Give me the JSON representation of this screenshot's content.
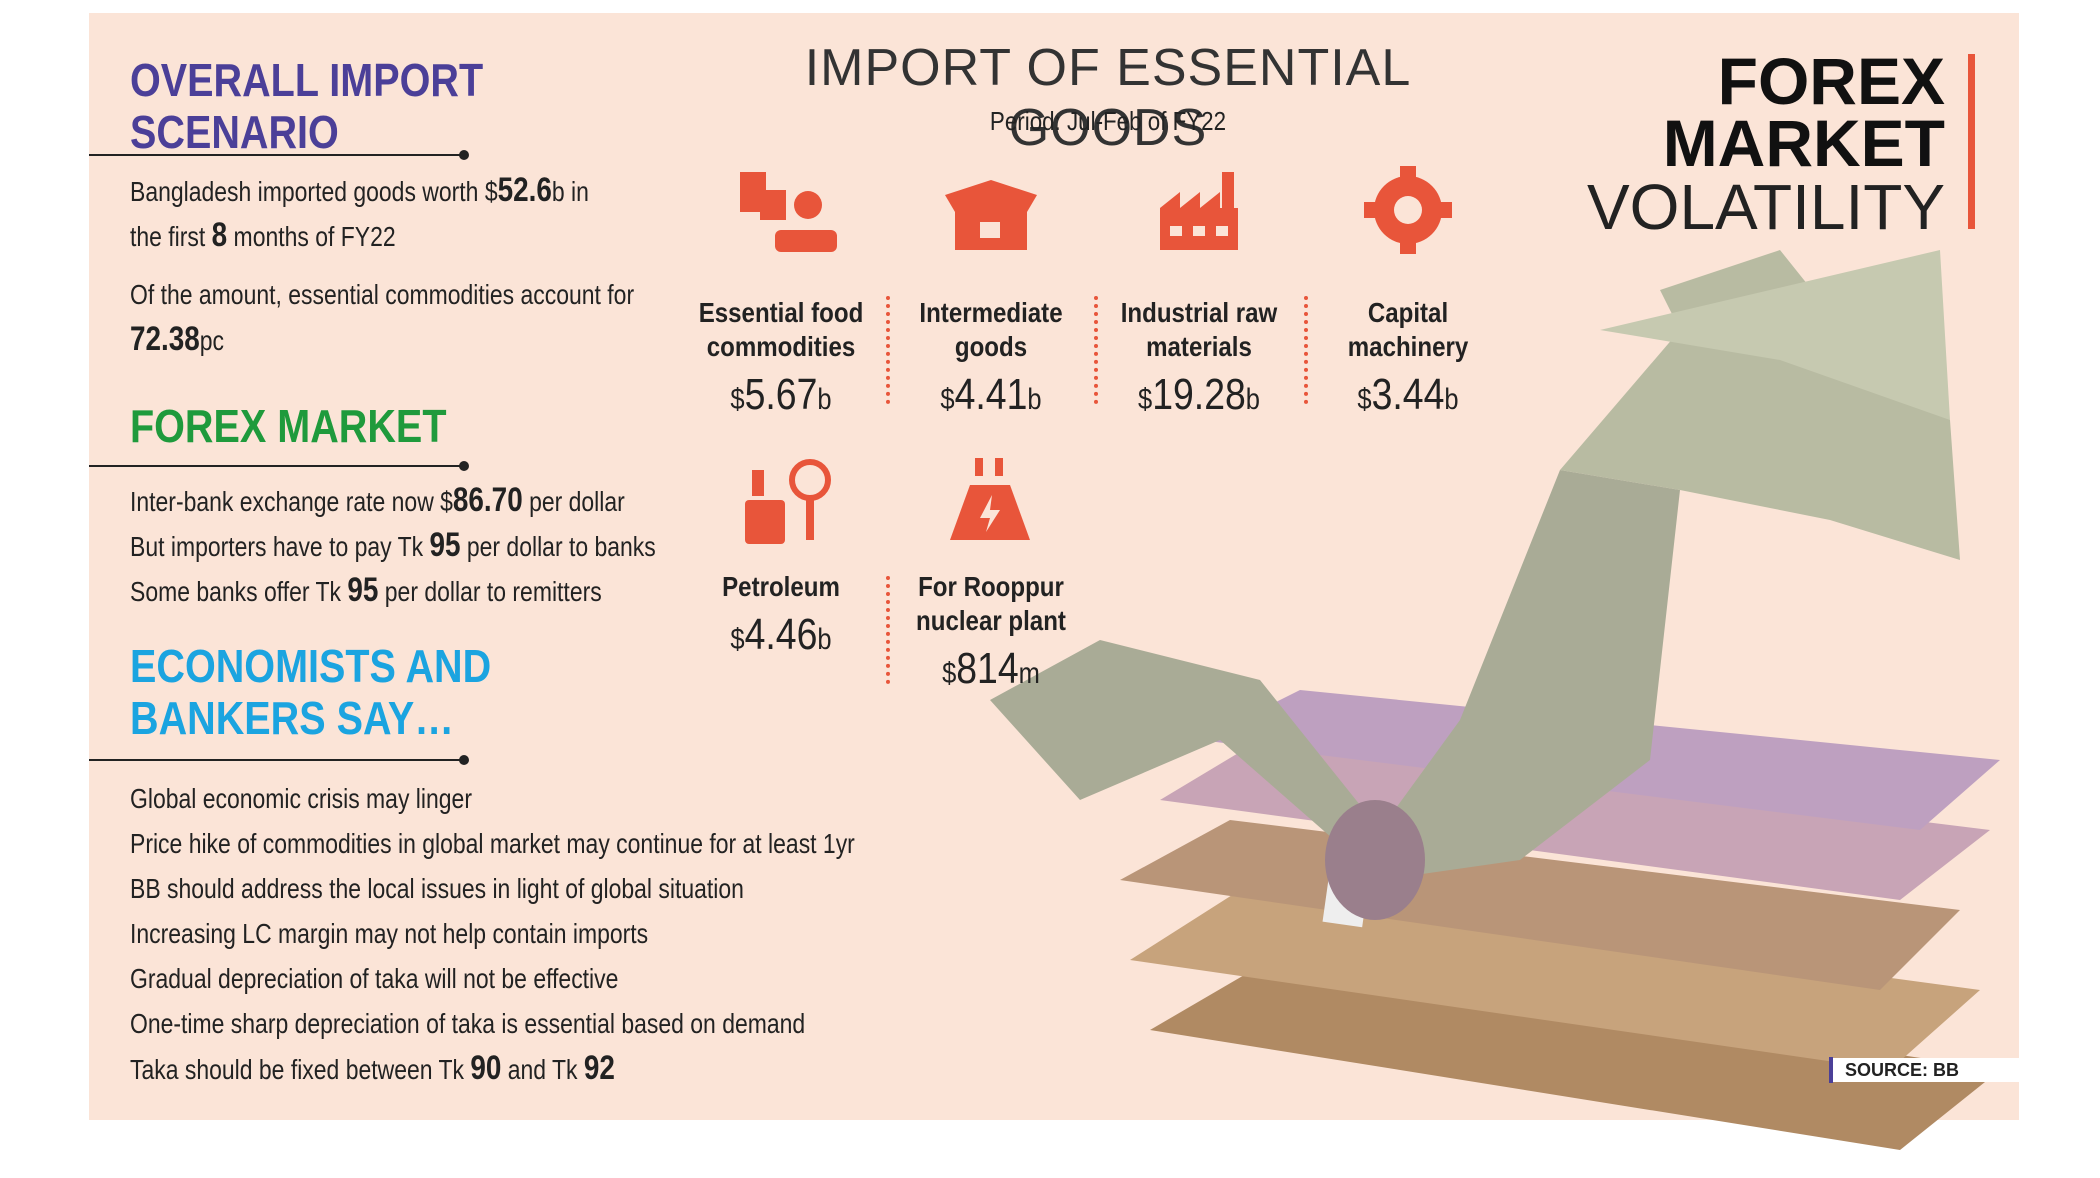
{
  "left": {
    "sections": [
      {
        "title": "OVERALL IMPORT SCENARIO",
        "color": "#4b3f98",
        "paragraphs": [
          [
            [
              "Bangladesh imported goods worth $",
              {
                "bold": "52.6"
              },
              "b in"
            ],
            [
              "the first ",
              {
                "bold": "8"
              },
              " months of FY22"
            ]
          ],
          [
            [
              "Of the amount, essential commodities account for"
            ],
            [
              {
                "bold": "72.38"
              },
              "pc"
            ]
          ]
        ]
      },
      {
        "title": "FOREX MARKET",
        "color": "#1f9a3c",
        "paragraphs": [
          [
            [
              "Inter-bank exchange rate now $",
              {
                "bold": "86.70"
              },
              " per dollar"
            ]
          ],
          [
            [
              "But importers have to pay Tk ",
              {
                "bold": "95"
              },
              " per dollar to banks"
            ]
          ],
          [
            [
              "Some banks offer Tk ",
              {
                "bold": "95"
              },
              " per dollar to remitters"
            ]
          ]
        ]
      },
      {
        "title": "ECONOMISTS AND BANKERS SAY…",
        "color": "#1ba4e0",
        "paragraphs": [
          [
            [
              "Global economic crisis may linger"
            ]
          ],
          [
            [
              "Price hike of commodities in global market may continue for at least 1yr"
            ]
          ],
          [
            [
              "BB should address the local issues in light of global situation"
            ]
          ],
          [
            [
              "Increasing LC margin may not help contain imports"
            ]
          ],
          [
            [
              "Gradual depreciation of taka will not be effective"
            ]
          ],
          [
            [
              "One-time sharp depreciation of taka is essential based on demand"
            ]
          ],
          [
            [
              "Taka should be fixed between Tk ",
              {
                "bold": "90"
              },
              " and Tk ",
              {
                "bold": "92"
              }
            ]
          ]
        ]
      }
    ]
  },
  "center": {
    "title": "IMPORT OF ESSENTIAL GOODS",
    "period": "Period: Jul-Feb of FY22",
    "items": [
      {
        "label": "Essential food commodities",
        "currency": "$",
        "amount": "5.67",
        "unit": "b"
      },
      {
        "label": "Intermediate goods",
        "currency": "$",
        "amount": "4.41",
        "unit": "b"
      },
      {
        "label": "Industrial raw materials",
        "currency": "$",
        "amount": "19.28",
        "unit": "b"
      },
      {
        "label": "Capital machinery",
        "currency": "$",
        "amount": "3.44",
        "unit": "b"
      },
      {
        "label": "Petroleum",
        "currency": "$",
        "amount": "4.46",
        "unit": "b"
      },
      {
        "label": "For Rooppur nuclear plant",
        "currency": "$",
        "amount": "814",
        "unit": "m"
      }
    ]
  },
  "right": {
    "title_lines": [
      "FOREX",
      "MARKET"
    ],
    "subtitle": "VOLATILITY"
  },
  "source": "SOURCE: BB"
}
